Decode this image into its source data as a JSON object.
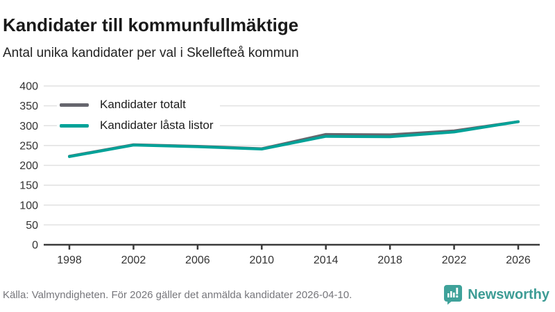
{
  "title": "Kandidater till kommunfullmäktige",
  "subtitle": "Antal unika kandidater per val i Skellefteå kommun",
  "footer": {
    "source": "Källa: Valmyndigheten. För 2026 gäller det anmälda kandidater 2026-04-10.",
    "brand": "Newsworthy"
  },
  "colors": {
    "total_line": "#66666d",
    "locked_line": "#00a298",
    "grid": "#e1e1e1",
    "axis": "#3a3a3a",
    "tick_text": "#333333",
    "brand_teal": "#3fa29a"
  },
  "chart_data": {
    "type": "line",
    "x": [
      1998,
      2002,
      2006,
      2010,
      2014,
      2018,
      2022,
      2026
    ],
    "series": [
      {
        "name": "Kandidater totalt",
        "color": "#66666d",
        "values": [
          223,
          252,
          248,
          242,
          278,
          277,
          287,
          310
        ]
      },
      {
        "name": "Kandidater låsta listor",
        "color": "#00a298",
        "values": [
          222,
          251,
          247,
          241,
          273,
          272,
          284,
          310
        ]
      }
    ],
    "title": "Kandidater till kommunfullmäktige",
    "xlabel": "",
    "ylabel": "",
    "ylim": [
      0,
      400
    ],
    "yticks": [
      0,
      50,
      100,
      150,
      200,
      250,
      300,
      350,
      400
    ],
    "xticks": [
      "1998",
      "2002",
      "2006",
      "2010",
      "2014",
      "2018",
      "2022",
      "2026"
    ],
    "grid": true,
    "legend_position": "top-left"
  }
}
